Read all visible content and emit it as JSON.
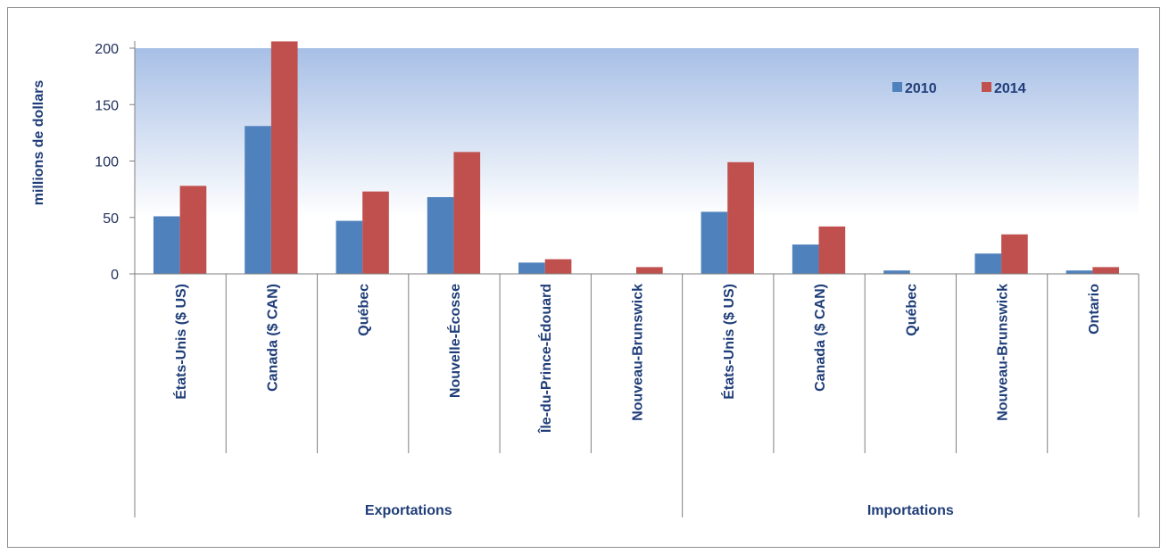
{
  "chart_data": {
    "type": "bar",
    "ylabel": "millions de dollars",
    "ylim": [
      0,
      200
    ],
    "yticks": [
      "0",
      "50",
      "100",
      "150",
      "200"
    ],
    "groups": [
      {
        "name": "Exportations",
        "categories": [
          "États-Unis ($ US)",
          "Canada ($ CAN)",
          "Québec",
          "Nouvelle-Écosse",
          "Île-du-Prince-Édouard",
          "Nouveau-Brunswick"
        ]
      },
      {
        "name": "Importations",
        "categories": [
          "États-Unis ($ US)",
          "Canada ($ CAN)",
          "Québec",
          "Nouveau-Brunswick",
          "Ontario"
        ]
      }
    ],
    "series": [
      {
        "name": "2010",
        "color": "#4f81bd",
        "values": [
          51,
          131,
          47,
          68,
          10,
          0,
          55,
          26,
          3,
          18,
          3
        ]
      },
      {
        "name": "2014",
        "color": "#c0504d",
        "values": [
          78,
          206,
          73,
          108,
          13,
          6,
          99,
          42,
          0,
          35,
          6
        ]
      }
    ],
    "legend_position": "top-right",
    "background_band": {
      "from": 50,
      "to": 200,
      "top_color": "#a7bfe6",
      "bottom_color": "#ffffff"
    },
    "grid": false
  }
}
